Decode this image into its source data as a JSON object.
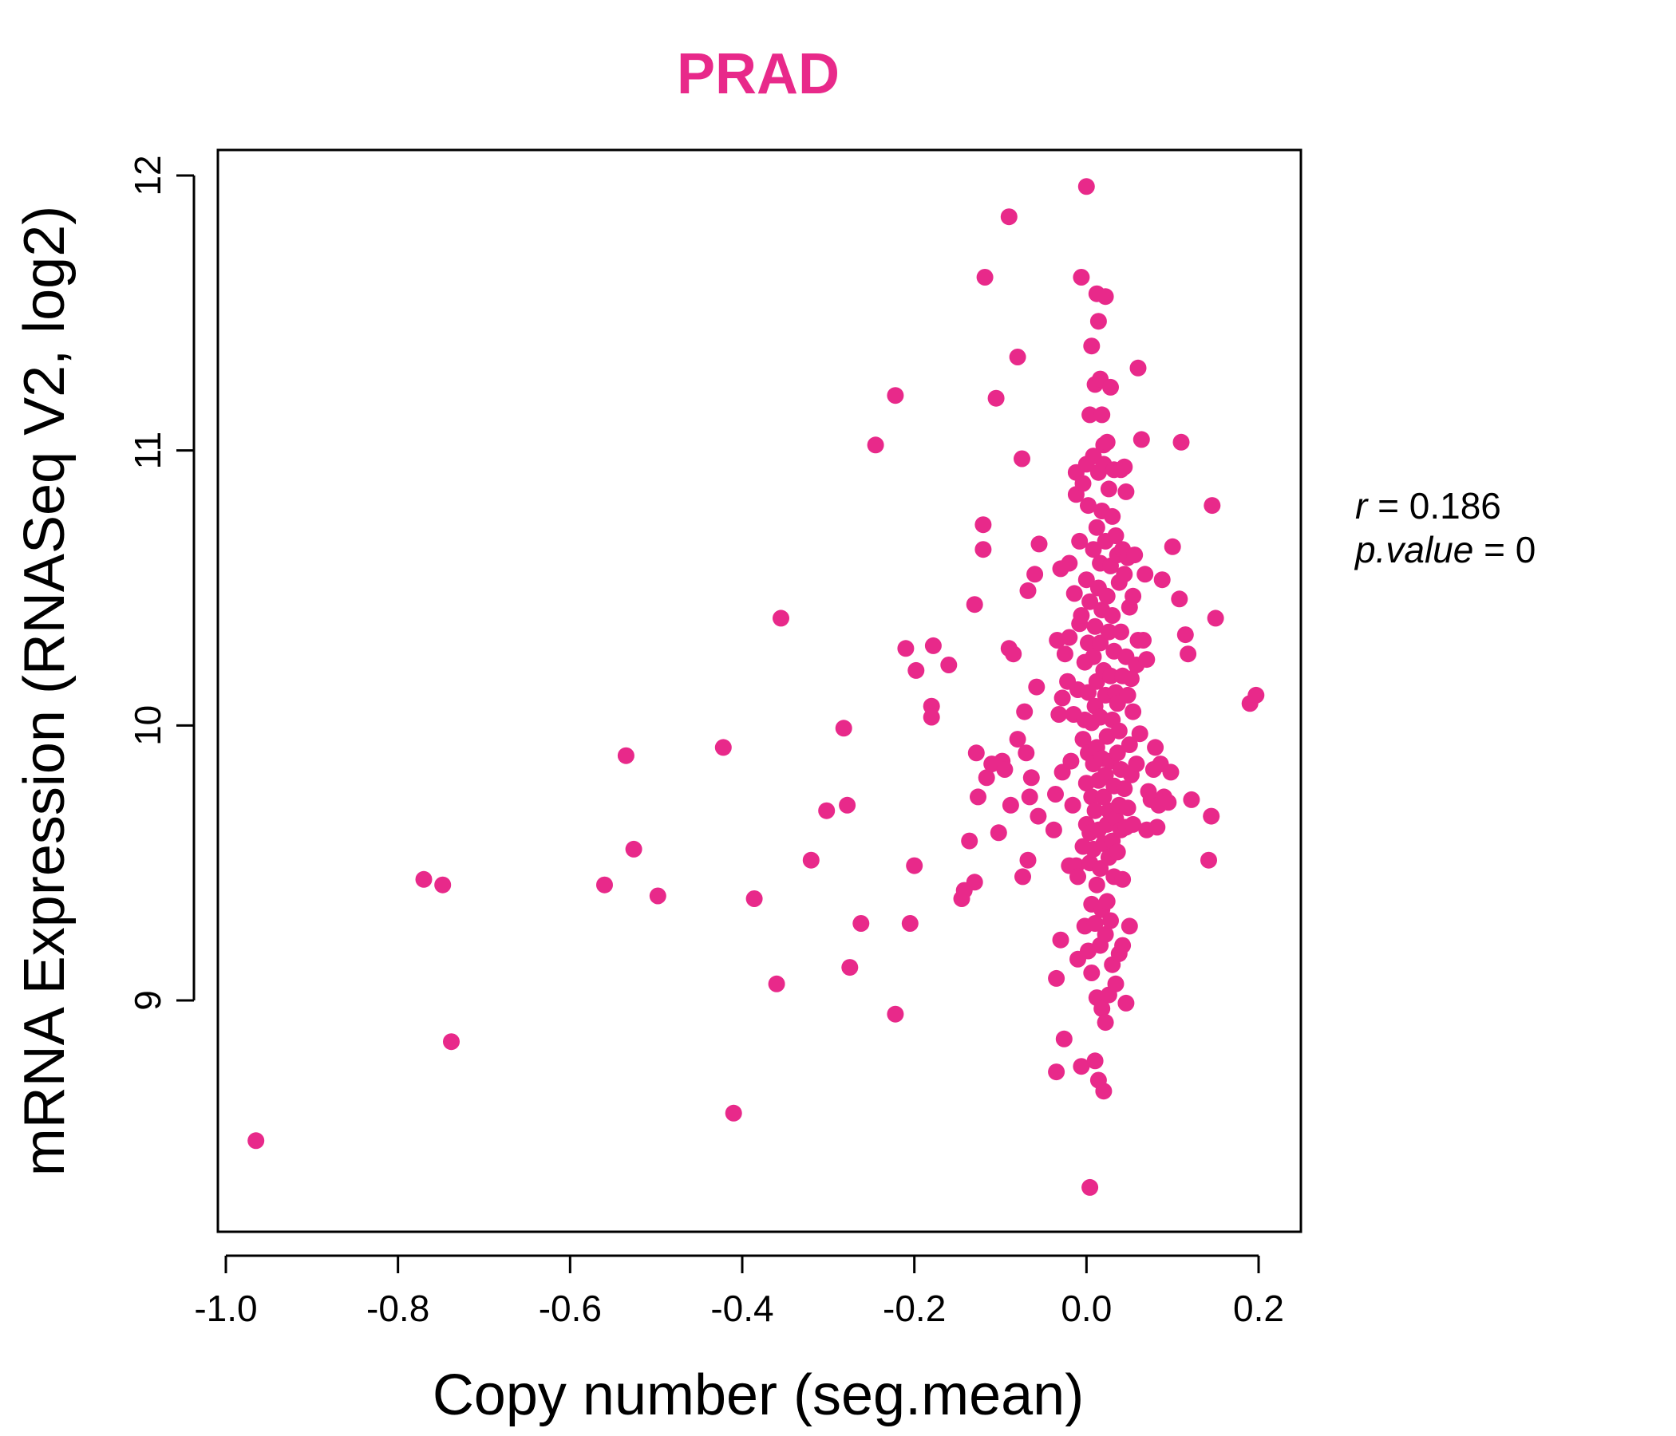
{
  "chart_data": {
    "type": "scatter",
    "title": "PRAD",
    "xlabel": "Copy number (seg.mean)",
    "ylabel": "mRNA Expression (RNASeq V2, log2)",
    "xlim": [
      -1.0,
      0.25
    ],
    "ylim": [
      8.3,
      12.1
    ],
    "xticks": [
      -1.0,
      -0.8,
      -0.6,
      -0.4,
      -0.2,
      0.0,
      0.2
    ],
    "xtick_labels": [
      "-1.0",
      "-0.8",
      "-0.6",
      "-0.4",
      "-0.2",
      "0.0",
      "0.2"
    ],
    "yticks": [
      9,
      10,
      11,
      12
    ],
    "ytick_labels": [
      "9",
      "10",
      "11",
      "12"
    ],
    "color": "#e8298a",
    "grid": false,
    "stats": {
      "r_label": "r",
      "r_value": "0.186",
      "p_label": "p.value",
      "p_value": "0"
    },
    "points": [
      {
        "x": -0.965,
        "y": 8.49
      },
      {
        "x": -0.77,
        "y": 9.44
      },
      {
        "x": -0.748,
        "y": 9.42
      },
      {
        "x": -0.738,
        "y": 8.85
      },
      {
        "x": -0.56,
        "y": 9.42
      },
      {
        "x": -0.535,
        "y": 9.89
      },
      {
        "x": -0.526,
        "y": 9.55
      },
      {
        "x": -0.498,
        "y": 9.38
      },
      {
        "x": -0.422,
        "y": 9.92
      },
      {
        "x": -0.41,
        "y": 8.59
      },
      {
        "x": -0.386,
        "y": 9.37
      },
      {
        "x": -0.36,
        "y": 9.06
      },
      {
        "x": -0.355,
        "y": 10.39
      },
      {
        "x": -0.32,
        "y": 9.51
      },
      {
        "x": -0.302,
        "y": 9.69
      },
      {
        "x": -0.282,
        "y": 9.99
      },
      {
        "x": -0.278,
        "y": 9.71
      },
      {
        "x": -0.275,
        "y": 9.12
      },
      {
        "x": -0.262,
        "y": 9.28
      },
      {
        "x": -0.245,
        "y": 11.02
      },
      {
        "x": -0.222,
        "y": 11.2
      },
      {
        "x": -0.222,
        "y": 8.95
      },
      {
        "x": -0.21,
        "y": 10.28
      },
      {
        "x": -0.205,
        "y": 9.28
      },
      {
        "x": -0.2,
        "y": 9.49
      },
      {
        "x": -0.198,
        "y": 10.2
      },
      {
        "x": -0.18,
        "y": 10.07
      },
      {
        "x": -0.18,
        "y": 10.03
      },
      {
        "x": -0.178,
        "y": 10.29
      },
      {
        "x": -0.16,
        "y": 10.22
      },
      {
        "x": -0.145,
        "y": 9.37
      },
      {
        "x": -0.142,
        "y": 9.4
      },
      {
        "x": -0.136,
        "y": 9.58
      },
      {
        "x": -0.13,
        "y": 9.43
      },
      {
        "x": -0.13,
        "y": 10.44
      },
      {
        "x": -0.128,
        "y": 9.9
      },
      {
        "x": -0.126,
        "y": 9.74
      },
      {
        "x": -0.12,
        "y": 10.73
      },
      {
        "x": -0.12,
        "y": 10.64
      },
      {
        "x": -0.118,
        "y": 11.63
      },
      {
        "x": -0.116,
        "y": 9.81
      },
      {
        "x": -0.11,
        "y": 9.86
      },
      {
        "x": -0.105,
        "y": 11.19
      },
      {
        "x": -0.102,
        "y": 9.61
      },
      {
        "x": -0.098,
        "y": 9.87
      },
      {
        "x": -0.095,
        "y": 9.84
      },
      {
        "x": -0.09,
        "y": 11.85
      },
      {
        "x": -0.09,
        "y": 10.28
      },
      {
        "x": -0.088,
        "y": 9.71
      },
      {
        "x": -0.085,
        "y": 10.26
      },
      {
        "x": -0.08,
        "y": 11.34
      },
      {
        "x": -0.08,
        "y": 9.95
      },
      {
        "x": -0.075,
        "y": 10.97
      },
      {
        "x": -0.074,
        "y": 9.45
      },
      {
        "x": -0.072,
        "y": 10.05
      },
      {
        "x": -0.07,
        "y": 9.9
      },
      {
        "x": -0.068,
        "y": 10.49
      },
      {
        "x": -0.068,
        "y": 9.51
      },
      {
        "x": -0.066,
        "y": 9.74
      },
      {
        "x": -0.064,
        "y": 9.81
      },
      {
        "x": -0.06,
        "y": 10.55
      },
      {
        "x": -0.058,
        "y": 10.14
      },
      {
        "x": -0.056,
        "y": 9.67
      },
      {
        "x": -0.055,
        "y": 10.66
      },
      {
        "x": -0.038,
        "y": 9.62
      },
      {
        "x": -0.036,
        "y": 9.75
      },
      {
        "x": -0.035,
        "y": 9.08
      },
      {
        "x": -0.035,
        "y": 8.74
      },
      {
        "x": -0.034,
        "y": 10.31
      },
      {
        "x": -0.032,
        "y": 10.04
      },
      {
        "x": -0.03,
        "y": 10.57
      },
      {
        "x": -0.03,
        "y": 9.22
      },
      {
        "x": -0.028,
        "y": 9.83
      },
      {
        "x": -0.028,
        "y": 10.1
      },
      {
        "x": -0.026,
        "y": 8.86
      },
      {
        "x": -0.025,
        "y": 10.26
      },
      {
        "x": -0.022,
        "y": 10.16
      },
      {
        "x": -0.02,
        "y": 9.49
      },
      {
        "x": -0.02,
        "y": 10.59
      },
      {
        "x": -0.02,
        "y": 10.32
      },
      {
        "x": -0.018,
        "y": 9.87
      },
      {
        "x": -0.016,
        "y": 9.71
      },
      {
        "x": -0.015,
        "y": 10.04
      },
      {
        "x": -0.014,
        "y": 10.48
      },
      {
        "x": -0.012,
        "y": 10.84
      },
      {
        "x": -0.012,
        "y": 10.92
      },
      {
        "x": -0.012,
        "y": 9.49
      },
      {
        "x": -0.01,
        "y": 9.45
      },
      {
        "x": -0.01,
        "y": 10.13
      },
      {
        "x": -0.01,
        "y": 9.15
      },
      {
        "x": -0.008,
        "y": 10.37
      },
      {
        "x": -0.008,
        "y": 10.67
      },
      {
        "x": -0.006,
        "y": 10.4
      },
      {
        "x": -0.006,
        "y": 11.63
      },
      {
        "x": -0.006,
        "y": 8.76
      },
      {
        "x": -0.004,
        "y": 9.56
      },
      {
        "x": -0.004,
        "y": 10.88
      },
      {
        "x": -0.004,
        "y": 9.95
      },
      {
        "x": -0.002,
        "y": 10.02
      },
      {
        "x": -0.002,
        "y": 9.27
      },
      {
        "x": -0.002,
        "y": 10.23
      },
      {
        "x": 0.0,
        "y": 11.96
      },
      {
        "x": 0.0,
        "y": 10.53
      },
      {
        "x": 0.0,
        "y": 9.64
      },
      {
        "x": 0.0,
        "y": 10.95
      },
      {
        "x": 0.0,
        "y": 9.79
      },
      {
        "x": 0.002,
        "y": 9.18
      },
      {
        "x": 0.002,
        "y": 10.3
      },
      {
        "x": 0.002,
        "y": 9.9
      },
      {
        "x": 0.002,
        "y": 10.8
      },
      {
        "x": 0.002,
        "y": 10.12
      },
      {
        "x": 0.004,
        "y": 8.32
      },
      {
        "x": 0.004,
        "y": 9.61
      },
      {
        "x": 0.004,
        "y": 10.45
      },
      {
        "x": 0.004,
        "y": 11.13
      },
      {
        "x": 0.004,
        "y": 9.5
      },
      {
        "x": 0.006,
        "y": 10.01
      },
      {
        "x": 0.006,
        "y": 9.35
      },
      {
        "x": 0.006,
        "y": 11.38
      },
      {
        "x": 0.006,
        "y": 9.74
      },
      {
        "x": 0.006,
        "y": 9.1
      },
      {
        "x": 0.008,
        "y": 10.64
      },
      {
        "x": 0.008,
        "y": 10.25
      },
      {
        "x": 0.008,
        "y": 9.86
      },
      {
        "x": 0.008,
        "y": 10.98
      },
      {
        "x": 0.008,
        "y": 9.55
      },
      {
        "x": 0.01,
        "y": 11.24
      },
      {
        "x": 0.01,
        "y": 10.36
      },
      {
        "x": 0.01,
        "y": 10.07
      },
      {
        "x": 0.01,
        "y": 9.28
      },
      {
        "x": 0.01,
        "y": 8.78
      },
      {
        "x": 0.01,
        "y": 9.69
      },
      {
        "x": 0.012,
        "y": 11.57
      },
      {
        "x": 0.012,
        "y": 10.72
      },
      {
        "x": 0.012,
        "y": 10.16
      },
      {
        "x": 0.012,
        "y": 9.92
      },
      {
        "x": 0.012,
        "y": 9.01
      },
      {
        "x": 0.012,
        "y": 9.42
      },
      {
        "x": 0.014,
        "y": 11.47
      },
      {
        "x": 0.014,
        "y": 10.5
      },
      {
        "x": 0.014,
        "y": 9.8
      },
      {
        "x": 0.014,
        "y": 10.92
      },
      {
        "x": 0.014,
        "y": 9.62
      },
      {
        "x": 0.014,
        "y": 8.71
      },
      {
        "x": 0.016,
        "y": 11.26
      },
      {
        "x": 0.016,
        "y": 10.3
      },
      {
        "x": 0.016,
        "y": 10.03
      },
      {
        "x": 0.016,
        "y": 9.2
      },
      {
        "x": 0.016,
        "y": 9.48
      },
      {
        "x": 0.016,
        "y": 10.59
      },
      {
        "x": 0.018,
        "y": 11.13
      },
      {
        "x": 0.018,
        "y": 10.42
      },
      {
        "x": 0.018,
        "y": 9.88
      },
      {
        "x": 0.018,
        "y": 9.33
      },
      {
        "x": 0.018,
        "y": 8.97
      },
      {
        "x": 0.018,
        "y": 10.78
      },
      {
        "x": 0.02,
        "y": 11.02
      },
      {
        "x": 0.02,
        "y": 10.2
      },
      {
        "x": 0.02,
        "y": 9.74
      },
      {
        "x": 0.02,
        "y": 9.57
      },
      {
        "x": 0.02,
        "y": 8.67
      },
      {
        "x": 0.02,
        "y": 10.95
      },
      {
        "x": 0.022,
        "y": 11.56
      },
      {
        "x": 0.022,
        "y": 10.67
      },
      {
        "x": 0.022,
        "y": 10.11
      },
      {
        "x": 0.022,
        "y": 9.82
      },
      {
        "x": 0.022,
        "y": 9.24
      },
      {
        "x": 0.022,
        "y": 8.92
      },
      {
        "x": 0.024,
        "y": 11.03
      },
      {
        "x": 0.024,
        "y": 10.47
      },
      {
        "x": 0.024,
        "y": 9.96
      },
      {
        "x": 0.024,
        "y": 9.64
      },
      {
        "x": 0.024,
        "y": 9.36
      },
      {
        "x": 0.026,
        "y": 10.86
      },
      {
        "x": 0.026,
        "y": 10.34
      },
      {
        "x": 0.026,
        "y": 9.69
      },
      {
        "x": 0.026,
        "y": 9.52
      },
      {
        "x": 0.026,
        "y": 9.02
      },
      {
        "x": 0.028,
        "y": 11.23
      },
      {
        "x": 0.028,
        "y": 10.58
      },
      {
        "x": 0.028,
        "y": 10.18
      },
      {
        "x": 0.028,
        "y": 9.87
      },
      {
        "x": 0.028,
        "y": 9.29
      },
      {
        "x": 0.03,
        "y": 10.76
      },
      {
        "x": 0.03,
        "y": 10.4
      },
      {
        "x": 0.03,
        "y": 10.02
      },
      {
        "x": 0.03,
        "y": 9.58
      },
      {
        "x": 0.03,
        "y": 9.13
      },
      {
        "x": 0.032,
        "y": 10.93
      },
      {
        "x": 0.032,
        "y": 10.27
      },
      {
        "x": 0.032,
        "y": 9.78
      },
      {
        "x": 0.032,
        "y": 9.45
      },
      {
        "x": 0.034,
        "y": 10.69
      },
      {
        "x": 0.034,
        "y": 10.12
      },
      {
        "x": 0.034,
        "y": 9.66
      },
      {
        "x": 0.034,
        "y": 9.06
      },
      {
        "x": 0.036,
        "y": 10.62
      },
      {
        "x": 0.036,
        "y": 10.08
      },
      {
        "x": 0.036,
        "y": 9.9
      },
      {
        "x": 0.036,
        "y": 9.54
      },
      {
        "x": 0.038,
        "y": 10.52
      },
      {
        "x": 0.038,
        "y": 9.98
      },
      {
        "x": 0.038,
        "y": 9.71
      },
      {
        "x": 0.038,
        "y": 9.17
      },
      {
        "x": 0.04,
        "y": 10.93
      },
      {
        "x": 0.04,
        "y": 10.34
      },
      {
        "x": 0.04,
        "y": 9.84
      },
      {
        "x": 0.04,
        "y": 9.62
      },
      {
        "x": 0.042,
        "y": 10.64
      },
      {
        "x": 0.042,
        "y": 10.18
      },
      {
        "x": 0.042,
        "y": 9.44
      },
      {
        "x": 0.042,
        "y": 9.2
      },
      {
        "x": 0.044,
        "y": 10.94
      },
      {
        "x": 0.044,
        "y": 10.55
      },
      {
        "x": 0.044,
        "y": 9.77
      },
      {
        "x": 0.046,
        "y": 10.85
      },
      {
        "x": 0.046,
        "y": 10.25
      },
      {
        "x": 0.046,
        "y": 9.63
      },
      {
        "x": 0.046,
        "y": 8.99
      },
      {
        "x": 0.048,
        "y": 10.61
      },
      {
        "x": 0.048,
        "y": 10.11
      },
      {
        "x": 0.048,
        "y": 9.7
      },
      {
        "x": 0.05,
        "y": 10.43
      },
      {
        "x": 0.05,
        "y": 9.93
      },
      {
        "x": 0.05,
        "y": 9.27
      },
      {
        "x": 0.052,
        "y": 10.17
      },
      {
        "x": 0.052,
        "y": 9.82
      },
      {
        "x": 0.054,
        "y": 10.47
      },
      {
        "x": 0.054,
        "y": 10.05
      },
      {
        "x": 0.054,
        "y": 9.64
      },
      {
        "x": 0.056,
        "y": 10.62
      },
      {
        "x": 0.058,
        "y": 10.22
      },
      {
        "x": 0.058,
        "y": 9.86
      },
      {
        "x": 0.06,
        "y": 11.3
      },
      {
        "x": 0.06,
        "y": 10.31
      },
      {
        "x": 0.062,
        "y": 9.97
      },
      {
        "x": 0.064,
        "y": 11.04
      },
      {
        "x": 0.066,
        "y": 10.31
      },
      {
        "x": 0.068,
        "y": 10.55
      },
      {
        "x": 0.07,
        "y": 9.62
      },
      {
        "x": 0.07,
        "y": 10.24
      },
      {
        "x": 0.072,
        "y": 9.76
      },
      {
        "x": 0.075,
        "y": 9.73
      },
      {
        "x": 0.078,
        "y": 9.84
      },
      {
        "x": 0.08,
        "y": 9.92
      },
      {
        "x": 0.082,
        "y": 9.63
      },
      {
        "x": 0.084,
        "y": 9.71
      },
      {
        "x": 0.086,
        "y": 9.86
      },
      {
        "x": 0.088,
        "y": 10.53
      },
      {
        "x": 0.09,
        "y": 9.74
      },
      {
        "x": 0.095,
        "y": 9.72
      },
      {
        "x": 0.098,
        "y": 9.83
      },
      {
        "x": 0.1,
        "y": 10.65
      },
      {
        "x": 0.108,
        "y": 10.46
      },
      {
        "x": 0.11,
        "y": 11.03
      },
      {
        "x": 0.115,
        "y": 10.33
      },
      {
        "x": 0.118,
        "y": 10.26
      },
      {
        "x": 0.122,
        "y": 9.73
      },
      {
        "x": 0.142,
        "y": 9.51
      },
      {
        "x": 0.145,
        "y": 9.67
      },
      {
        "x": 0.146,
        "y": 10.8
      },
      {
        "x": 0.15,
        "y": 10.39
      },
      {
        "x": 0.19,
        "y": 10.08
      },
      {
        "x": 0.197,
        "y": 10.11
      }
    ]
  }
}
